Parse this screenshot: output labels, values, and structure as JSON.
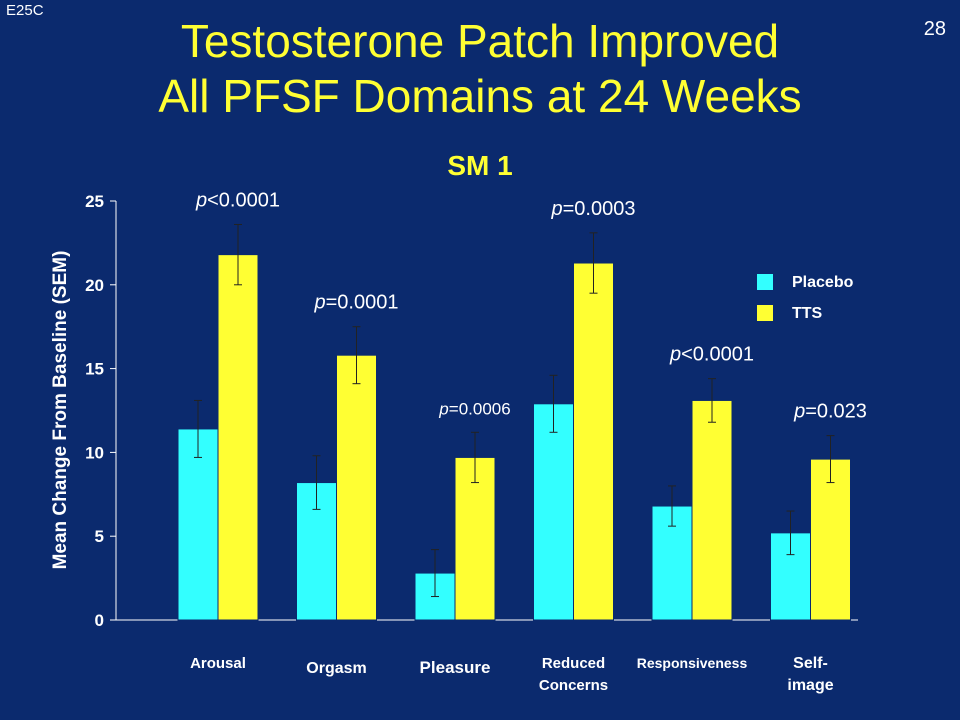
{
  "slide": {
    "corner_tag": "E25C",
    "page_number": "28",
    "title_line1": "Testosterone Patch Improved",
    "title_line2": "All PFSF Domains at 24 Weeks",
    "subtitle": "SM 1"
  },
  "colors": {
    "background": "#0b2a6e",
    "placebo": "#33ffff",
    "tts": "#ffff33",
    "title": "#ffff33",
    "text": "#ffffff"
  },
  "chart_data": {
    "type": "bar",
    "categories": [
      "Arousal",
      "Orgasm",
      "Pleasure",
      "Reduced Concerns",
      "Responsiveness",
      "Self-image"
    ],
    "category_labels": [
      [
        "Arousal"
      ],
      [
        "Orgasm"
      ],
      [
        "Pleasure"
      ],
      [
        "Reduced",
        "Concerns"
      ],
      [
        "Responsiveness"
      ],
      [
        "Self-",
        "image"
      ]
    ],
    "series": [
      {
        "name": "Placebo",
        "color": "#33ffff",
        "values": [
          11.4,
          8.2,
          2.8,
          12.9,
          6.8,
          5.2
        ],
        "error": [
          1.7,
          1.6,
          1.4,
          1.7,
          1.2,
          1.3
        ]
      },
      {
        "name": "TTS",
        "color": "#ffff33",
        "values": [
          21.8,
          15.8,
          9.7,
          21.3,
          13.1,
          9.6
        ],
        "error": [
          1.8,
          1.7,
          1.5,
          1.8,
          1.3,
          1.4
        ]
      }
    ],
    "annotations": [
      {
        "italic": "p",
        "text": "<0.0001"
      },
      {
        "italic": "p",
        "text": "=0.0001"
      },
      {
        "italic": "p",
        "text": "=0.0006"
      },
      {
        "italic": "p",
        "text": "=0.0003"
      },
      {
        "italic": "p",
        "text": "<0.0001"
      },
      {
        "italic": "p",
        "text": "=0.023"
      }
    ],
    "ylabel": "Mean Change From Baseline (SEM)",
    "xlabel": "",
    "ylim": [
      0,
      25
    ],
    "yticks": [
      0,
      5,
      10,
      15,
      20,
      25
    ],
    "grid": false,
    "legend": {
      "position": "right",
      "entries": [
        "Placebo",
        "TTS"
      ]
    }
  }
}
